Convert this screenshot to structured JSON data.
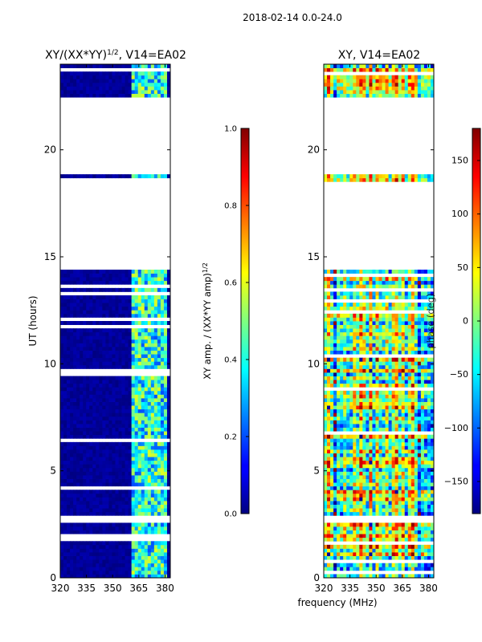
{
  "figure": {
    "suptitle": "2018-02-14 0.0-24.0",
    "xlabel": "frequency (MHz)"
  },
  "chart_data": [
    {
      "type": "heatmap",
      "title_prefix": "XY/(XX*YY)",
      "title_exp": "1/2",
      "title_suffix": ", V14=EA02",
      "xlabel": "",
      "ylabel": "UT (hours)",
      "x_ticks": [
        320,
        335,
        350,
        365,
        380
      ],
      "y_ticks": [
        0,
        5,
        10,
        15,
        20
      ],
      "xlim": [
        320,
        383
      ],
      "ylim": [
        0,
        24
      ],
      "colormap": "jet",
      "colorbar": {
        "label_prefix": "XY amp. / (XX*YY amp)",
        "label_exp": "1/2",
        "range": [
          0.0,
          1.0
        ],
        "ticks": [
          "0.0",
          "0.2",
          "0.4",
          "0.6",
          "0.8",
          "1.0"
        ]
      },
      "data_gaps_ut": [
        [
          14.4,
          18.5
        ],
        [
          18.8,
          22.4
        ]
      ],
      "dominant_value": 0.05,
      "elevated_band_mhz": [
        361,
        382
      ],
      "elevated_band_value_range": [
        0.2,
        0.6
      ]
    },
    {
      "type": "heatmap",
      "title": "XY, V14=EA02",
      "xlabel": "",
      "ylabel": "",
      "x_ticks": [
        320,
        335,
        350,
        365,
        380
      ],
      "y_ticks": [
        0,
        5,
        10,
        15,
        20
      ],
      "xlim": [
        320,
        383
      ],
      "ylim": [
        0,
        24
      ],
      "colormap": "jet",
      "colorbar": {
        "label": "phase (deg)",
        "range": [
          -180,
          180
        ],
        "ticks": [
          "−150",
          "−100",
          "−50",
          "0",
          "50",
          "100",
          "150"
        ],
        "tick_values": [
          -150,
          -100,
          -50,
          0,
          50,
          100,
          150
        ]
      },
      "data_gaps_ut": [
        [
          14.4,
          18.5
        ],
        [
          18.8,
          22.4
        ]
      ],
      "value_range": [
        -180,
        180
      ]
    }
  ]
}
